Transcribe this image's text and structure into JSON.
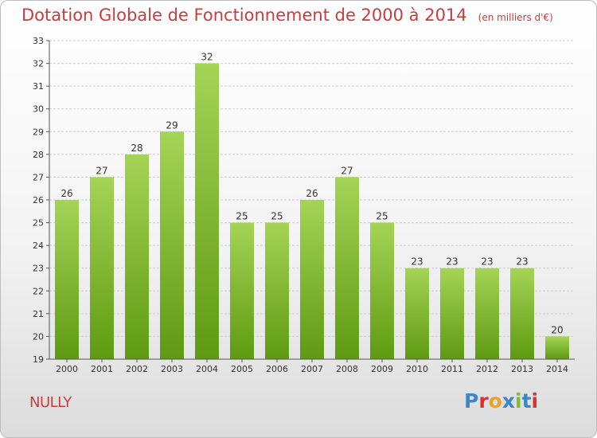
{
  "title": "Dotation Globale de Fonctionnement de 2000 à 2014",
  "unit": "(en milliers d'€)",
  "commune": "NULLY",
  "logo": {
    "text": "Proxiti",
    "letters": [
      {
        "char": "P",
        "color": "#3a86c8"
      },
      {
        "char": "r",
        "color": "#e0302a"
      },
      {
        "char": "o",
        "color": "#f0a020"
      },
      {
        "char": "x",
        "color": "#3a86c8"
      },
      {
        "char": "i",
        "color": "#7cbf2a"
      },
      {
        "char": "t",
        "color": "#3a86c8"
      },
      {
        "char": "i",
        "color": "#e0302a"
      }
    ]
  },
  "colors": {
    "bar_light": "#a4d455",
    "bar_dark": "#5f9a12",
    "grid": "#d0d0d0",
    "title": "#c83c3c"
  },
  "chart_data": {
    "type": "bar",
    "title": "Dotation Globale de Fonctionnement de 2000 à 2014",
    "subtitle": "(en milliers d'€)",
    "categories": [
      "2000",
      "2001",
      "2002",
      "2003",
      "2004",
      "2005",
      "2006",
      "2007",
      "2008",
      "2009",
      "2010",
      "2011",
      "2012",
      "2013",
      "2014"
    ],
    "values": [
      26,
      27,
      28,
      29,
      32,
      25,
      25,
      26,
      27,
      25,
      23,
      23,
      23,
      23,
      20
    ],
    "ylim": [
      19,
      33
    ],
    "yticks": [
      19,
      20,
      21,
      22,
      23,
      24,
      25,
      26,
      27,
      28,
      29,
      30,
      31,
      32,
      33
    ],
    "grid": true,
    "data_labels": true
  }
}
